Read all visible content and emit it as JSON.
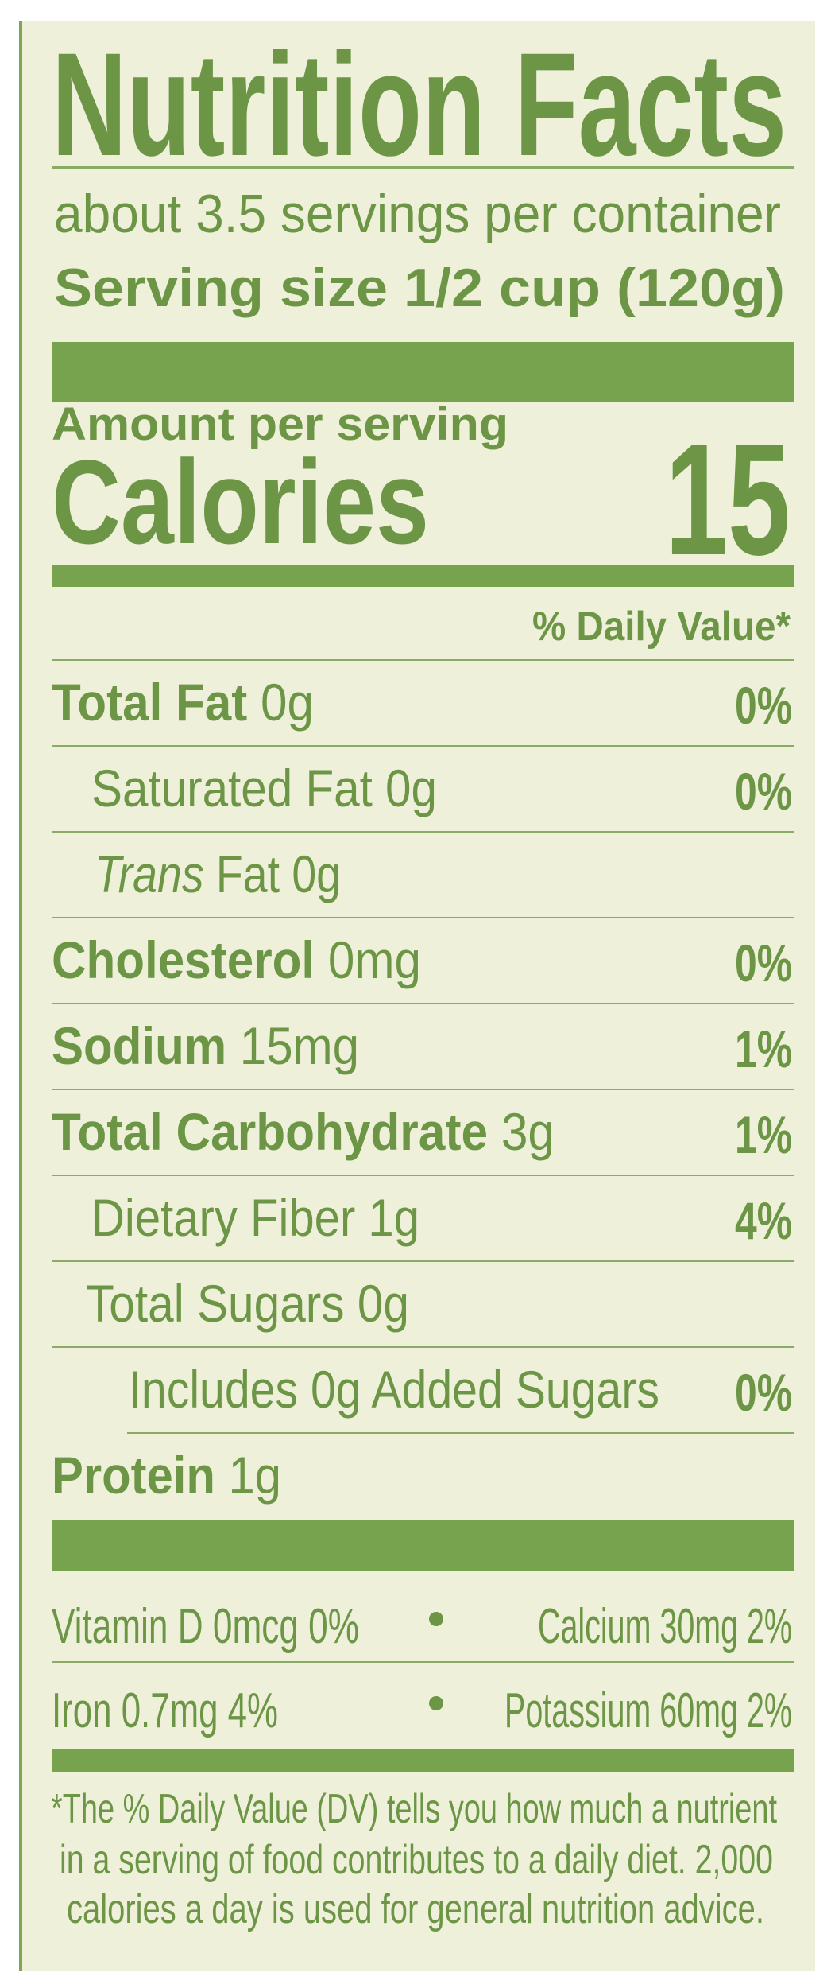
{
  "label": {
    "title": "Nutrition Facts",
    "servings_per_container": "about 3.5 servings per container",
    "serving_size": "Serving size 1/2 cup (120g)",
    "amount_per_serving": "Amount per serving",
    "calories_label": "Calories",
    "calories_value": "15",
    "daily_value_header": "% Daily Value*",
    "nutrients": [
      {
        "name": "Total Fat",
        "amount": " 0g",
        "dv": "0%"
      },
      {
        "name": "Saturated Fat 0g",
        "amount": "",
        "dv": "0%"
      },
      {
        "name": "Trans",
        "amount": " Fat 0g",
        "dv": ""
      },
      {
        "name": "Cholesterol",
        "amount": " 0mg",
        "dv": "0%"
      },
      {
        "name": "Sodium",
        "amount": " 15mg",
        "dv": "1%"
      },
      {
        "name": "Total Carbohydrate",
        "amount": " 3g",
        "dv": "1%"
      },
      {
        "name": "Dietary Fiber 1g",
        "amount": "",
        "dv": "4%"
      },
      {
        "name": "Total Sugars 0g",
        "amount": "",
        "dv": ""
      },
      {
        "name": "Includes 0g Added Sugars",
        "amount": "",
        "dv": "0%"
      },
      {
        "name": "Protein",
        "amount": " 1g",
        "dv": ""
      }
    ],
    "micronutrients": [
      {
        "left": "Vitamin D 0mcg 0%",
        "right": "Calcium 30mg 2%"
      },
      {
        "left": "Iron 0.7mg 4%",
        "right": "Potassium 60mg 2%"
      }
    ],
    "footnote": [
      "*The % Daily Value (DV) tells you how much a nutrient",
      "in a serving of food contributes to a daily diet. 2,000",
      "calories a day is used for general nutrition advice."
    ]
  },
  "colors": {
    "text": "#6c9646",
    "bar": "#78a34e",
    "background": "#eef0d9"
  }
}
